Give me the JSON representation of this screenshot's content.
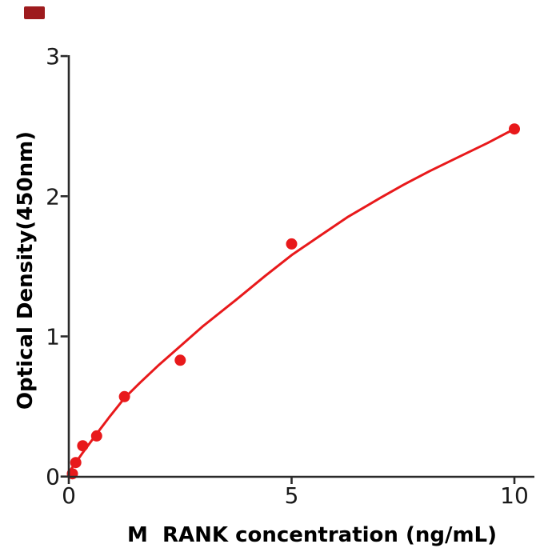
{
  "figure": {
    "background": "#ffffff",
    "brand_mark_color": "#9e1b1e"
  },
  "chart_data": {
    "type": "scatter",
    "title": "",
    "xlabel": "M  RANK concentration (ng/mL)",
    "ylabel": "Optical Density(450nm)",
    "x_ticks": [
      0,
      5,
      10
    ],
    "y_ticks": [
      0,
      1,
      2,
      3
    ],
    "xlim": [
      0,
      10.45
    ],
    "ylim": [
      0,
      3.0
    ],
    "grid": false,
    "legend": "none",
    "axis_color": "#2a2a2a",
    "tick_label_color": "#1a1a1a",
    "point_color": "#e8191b",
    "curve_color": "#e8191b",
    "points": [
      [
        0.08,
        0.02
      ],
      [
        0.156,
        0.1
      ],
      [
        0.313,
        0.22
      ],
      [
        0.625,
        0.29
      ],
      [
        1.25,
        0.57
      ],
      [
        2.5,
        0.83
      ],
      [
        5,
        1.66
      ],
      [
        10,
        2.48
      ]
    ],
    "fit_curve": [
      [
        0,
        0.03
      ],
      [
        0.156,
        0.1
      ],
      [
        0.313,
        0.17
      ],
      [
        0.625,
        0.305
      ],
      [
        0.9,
        0.42
      ],
      [
        1.25,
        0.56
      ],
      [
        1.6,
        0.67
      ],
      [
        2.0,
        0.79
      ],
      [
        2.5,
        0.93
      ],
      [
        3.0,
        1.07
      ],
      [
        3.75,
        1.26
      ],
      [
        4.4,
        1.43
      ],
      [
        5.0,
        1.58
      ],
      [
        5.6,
        1.71
      ],
      [
        6.25,
        1.85
      ],
      [
        7.0,
        1.99
      ],
      [
        7.5,
        2.08
      ],
      [
        8.1,
        2.18
      ],
      [
        8.75,
        2.28
      ],
      [
        9.4,
        2.38
      ],
      [
        10.0,
        2.48
      ]
    ]
  }
}
